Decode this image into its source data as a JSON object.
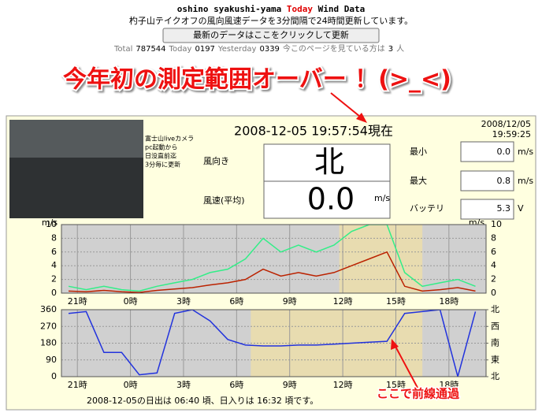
{
  "header": {
    "title_prefix": "oshino syakushi-yama ",
    "title_today": "Today",
    "title_suffix": " Wind Data",
    "subtitle": "杓子山テイクオフの風向風速データを3分間隔で24時間更新しています。",
    "button": "最新のデータはここをクリックして更新",
    "counter": [
      "Total",
      "787544",
      "Today",
      "0197",
      "Yesterday",
      "0339",
      "今このページを見ている方は",
      "3",
      "人"
    ]
  },
  "annotation": "今年初の測定範囲オーバー ！(>_<)",
  "camera": {
    "lines": [
      "富士山liveカメラ",
      "pc起動から",
      "日没直前迄",
      "3分毎に更新"
    ]
  },
  "timestamp": {
    "date": "2008/12/05",
    "time": "19:59:25"
  },
  "current_time": "2008-12-05 19:57:54現在",
  "readings": {
    "direction_label": "風向き",
    "direction": "北",
    "speed_label": "風速(平均)",
    "speed": "0.0",
    "speed_unit": "m/s",
    "min_label": "最小",
    "min": "0.0",
    "min_unit": "m/s",
    "max_label": "最大",
    "max": "0.8",
    "max_unit": "m/s",
    "battery_label": "バッテリ",
    "battery": "5.3",
    "battery_unit": "V"
  },
  "speed_chart": {
    "type": "line",
    "unit": "m/s",
    "x": [
      -0.5,
      0.5,
      1.5,
      2.5,
      3.5,
      4.5,
      5.5,
      6.5,
      7.5,
      8.5,
      9.5,
      10.5,
      11.5,
      12.5,
      13.5,
      14.5,
      15.5,
      16.5,
      17.5,
      18.5,
      19.5,
      20.5,
      21.5,
      22.5
    ],
    "xlim": [
      -0.9,
      23.1
    ],
    "xticks": [
      {
        "value": 0,
        "label": "21時"
      },
      {
        "value": 3,
        "label": "0時"
      },
      {
        "value": 6,
        "label": "3時"
      },
      {
        "value": 9,
        "label": "6時"
      },
      {
        "value": 12,
        "label": "9時"
      },
      {
        "value": 15,
        "label": "12時"
      },
      {
        "value": 18,
        "label": "15時"
      },
      {
        "value": 21,
        "label": "18時"
      }
    ],
    "ylim": [
      0,
      10
    ],
    "yticks": [
      0,
      2,
      4,
      6,
      8,
      10
    ],
    "bands": [
      [
        14.8,
        19.5
      ]
    ],
    "series": [
      {
        "color": "#33ee88",
        "values": [
          1,
          0.5,
          1,
          0.5,
          0.3,
          1,
          1.5,
          2,
          3,
          3.5,
          5,
          8,
          6,
          7,
          6,
          7,
          9,
          10,
          10,
          3,
          1,
          1.5,
          2,
          1
        ]
      },
      {
        "color": "#bb2200",
        "values": [
          0.3,
          0.2,
          0.4,
          0.2,
          0.1,
          0.4,
          0.6,
          0.8,
          1.2,
          1.5,
          2,
          3.5,
          2.5,
          3,
          2.5,
          3,
          4,
          5,
          6,
          1,
          0.3,
          0.5,
          0.8,
          0.3
        ]
      }
    ]
  },
  "direction_chart": {
    "type": "line",
    "x": [
      -0.5,
      0.5,
      1.5,
      2.5,
      3.5,
      4.5,
      5.5,
      6.5,
      7.5,
      8.5,
      9.5,
      10.5,
      11.5,
      12.5,
      13.5,
      14.5,
      15.5,
      16.5,
      17.5,
      18.5,
      19.5,
      20.5,
      21.5,
      22.5
    ],
    "xlim": [
      -0.9,
      23.1
    ],
    "xticks": [
      {
        "value": 0,
        "label": "21時"
      },
      {
        "value": 3,
        "label": "0時"
      },
      {
        "value": 6,
        "label": "3時"
      },
      {
        "value": 9,
        "label": "6時"
      },
      {
        "value": 12,
        "label": "9時"
      },
      {
        "value": 15,
        "label": "12時"
      },
      {
        "value": 18,
        "label": "15時"
      },
      {
        "value": 21,
        "label": "18時"
      }
    ],
    "ylim": [
      0,
      360
    ],
    "yticks": [
      0,
      90,
      180,
      270,
      360
    ],
    "yticks_right": [
      {
        "value": 360,
        "label": "北"
      },
      {
        "value": 270,
        "label": "西"
      },
      {
        "value": 180,
        "label": "南"
      },
      {
        "value": 90,
        "label": "東"
      },
      {
        "value": 0,
        "label": "北"
      }
    ],
    "bands": [
      [
        9.8,
        19.5
      ]
    ],
    "series": [
      {
        "color": "#2233dd",
        "values": [
          340,
          350,
          130,
          130,
          10,
          20,
          340,
          360,
          300,
          200,
          170,
          165,
          165,
          170,
          170,
          175,
          180,
          185,
          190,
          340,
          350,
          360,
          0,
          350
        ]
      }
    ]
  },
  "front_note": "ここで前線通過",
  "sun_note": "2008-12-05の日出は 06:40 頃、日入りは 16:32 頃です。"
}
